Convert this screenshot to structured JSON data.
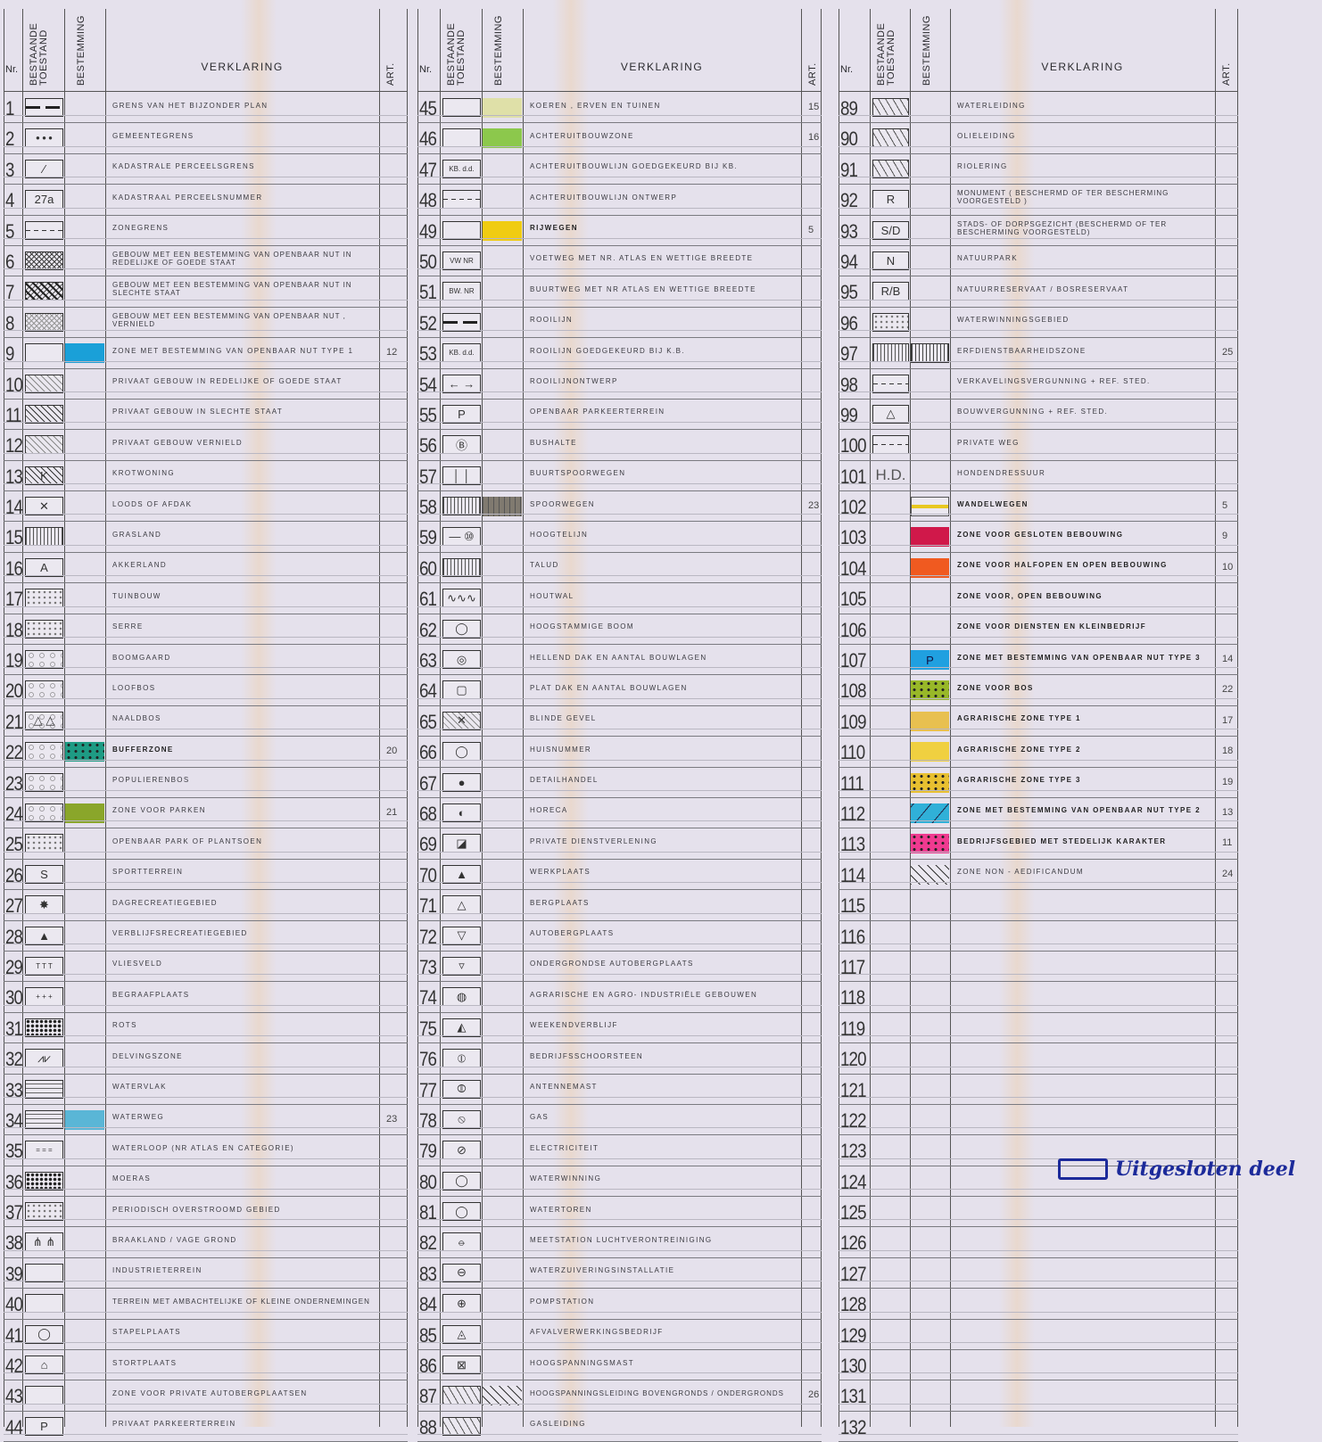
{
  "header": {
    "nr": "Nr.",
    "bestaande": "BESTAANDE TOESTAND",
    "bestemming": "BESTEMMING",
    "verklaring": "VERKLARING",
    "art": "ART."
  },
  "colors": {
    "paper": "#e5e1ec",
    "annotation": "#1c2a9a"
  },
  "annotation": {
    "text": "Uitgesloten deel",
    "icon": "outlined-rectangle-icon"
  },
  "columns": [
    {
      "rows": [
        {
          "nr": "1",
          "sym": "dash",
          "text": "GRENS VAN HET BIJZONDER PLAN"
        },
        {
          "nr": "2",
          "sym": "box",
          "glyph": "● ● ●",
          "text": "GEMEENTEGRENS"
        },
        {
          "nr": "3",
          "sym": "box",
          "glyph": "⁄",
          "text": "KADASTRALE PERCEELSGRENS"
        },
        {
          "nr": "4",
          "sym": "box",
          "glyph": "27a",
          "text": "KADASTRAAL PERCEELSNUMMER"
        },
        {
          "nr": "5",
          "sym": "dashed",
          "text": "ZONEGRENS"
        },
        {
          "nr": "6",
          "sym": "cross",
          "text": "GEBOUW MET EEN BESTEMMING VAN OPENBAAR NUT IN REDELIJKE OF GOEDE STAAT"
        },
        {
          "nr": "7",
          "sym": "cross-heavy",
          "text": "GEBOUW MET EEN BESTEMMING VAN OPENBAAR NUT IN SLECHTE STAAT"
        },
        {
          "nr": "8",
          "sym": "cross-light",
          "text": "GEBOUW MET EEN BESTEMMING VAN OPENBAAR NUT , VERNIELD"
        },
        {
          "nr": "9",
          "sym": "box",
          "dest": "#1aa0d8",
          "text": "ZONE MET BESTEMMING VAN OPENBAAR NUT TYPE 1",
          "art": "12"
        },
        {
          "nr": "10",
          "sym": "hatch-light",
          "text": "PRIVAAT GEBOUW IN REDELIJKE OF GOEDE STAAT"
        },
        {
          "nr": "11",
          "sym": "hatch",
          "text": "PRIVAAT GEBOUW IN SLECHTE STAAT"
        },
        {
          "nr": "12",
          "sym": "hatch-light",
          "text": "PRIVAAT GEBOUW VERNIELD"
        },
        {
          "nr": "13",
          "sym": "hatch",
          "glyph": "K",
          "text": "KROTWONING"
        },
        {
          "nr": "14",
          "sym": "box",
          "glyph": "✕",
          "text": "LOODS OF AFDAK"
        },
        {
          "nr": "15",
          "sym": "vlines",
          "text": "GRASLAND"
        },
        {
          "nr": "16",
          "sym": "box",
          "glyph": "A",
          "text": "AKKERLAND"
        },
        {
          "nr": "17",
          "sym": "dots",
          "text": "TUINBOUW"
        },
        {
          "nr": "18",
          "sym": "dots",
          "text": "SERRE"
        },
        {
          "nr": "19",
          "sym": "circles",
          "text": "BOOMGAARD"
        },
        {
          "nr": "20",
          "sym": "circles",
          "text": "LOOFBOS"
        },
        {
          "nr": "21",
          "sym": "circles",
          "glyph": "△ △",
          "text": "NAALDBOS"
        },
        {
          "nr": "22",
          "sym": "circles",
          "dest": "#1e9b84",
          "dest_pattern": "dots",
          "text": "BUFFERZONE",
          "bold": true,
          "art": "20"
        },
        {
          "nr": "23",
          "sym": "circles",
          "text": "POPULIERENBOS"
        },
        {
          "nr": "24",
          "sym": "circles",
          "dest": "#8aa62a",
          "text": "ZONE VOOR PARKEN",
          "art": "21"
        },
        {
          "nr": "25",
          "sym": "dots",
          "text": "OPENBAAR PARK OF PLANTSOEN"
        },
        {
          "nr": "26",
          "sym": "box",
          "glyph": "S",
          "text": "SPORTTERREIN"
        },
        {
          "nr": "27",
          "sym": "box",
          "glyph": "✸",
          "text": "DAGRECREATIEGEBIED"
        },
        {
          "nr": "28",
          "sym": "box",
          "glyph": "▲",
          "text": "VERBLIJFSRECREATIEGEBIED"
        },
        {
          "nr": "29",
          "sym": "box",
          "glyph": "T T T",
          "text": "VLIESVELD"
        },
        {
          "nr": "30",
          "sym": "box",
          "glyph": "+ + +",
          "text": "BEGRAAFPLAATS"
        },
        {
          "nr": "31",
          "sym": "rock",
          "text": "ROTS"
        },
        {
          "nr": "32",
          "sym": "box",
          "glyph": "⩘⩗",
          "text": "DELVINGSZONE"
        },
        {
          "nr": "33",
          "sym": "waves",
          "text": "WATERVLAK"
        },
        {
          "nr": "34",
          "sym": "waves",
          "dest": "#5ab6d6",
          "text": "WATERWEG",
          "art": "23"
        },
        {
          "nr": "35",
          "sym": "box",
          "glyph": "= = =",
          "text": "WATERLOOP (NR ATLAS EN CATEGORIE)"
        },
        {
          "nr": "36",
          "sym": "rock",
          "text": "MOERAS"
        },
        {
          "nr": "37",
          "sym": "dots",
          "text": "PERIODISCH OVERSTROOMD GEBIED"
        },
        {
          "nr": "38",
          "sym": "box",
          "glyph": "⋔ ⋔",
          "text": "BRAAKLAND / VAGE GROND"
        },
        {
          "nr": "39",
          "sym": "box",
          "text": "INDUSTRIETERREIN"
        },
        {
          "nr": "40",
          "sym": "box",
          "text": "TERREIN MET AMBACHTELIJKE OF KLEINE ONDERNEMINGEN"
        },
        {
          "nr": "41",
          "sym": "box",
          "glyph": "◯",
          "text": "STAPELPLAATS"
        },
        {
          "nr": "42",
          "sym": "box",
          "glyph": "⌂",
          "text": "STORTPLAATS"
        },
        {
          "nr": "43",
          "sym": "box",
          "text": "ZONE VOOR PRIVATE AUTOBERGPLAATSEN"
        },
        {
          "nr": "44",
          "sym": "box",
          "glyph": "P",
          "text": "PRIVAAT PARKEERTERREIN"
        }
      ]
    },
    {
      "rows": [
        {
          "nr": "45",
          "sym": "box",
          "dest": "#dfe0a8",
          "text": "KOEREN , ERVEN EN TUINEN",
          "art": "15"
        },
        {
          "nr": "46",
          "sym": "box",
          "dest": "#8cc84c",
          "text": "ACHTERUITBOUWZONE",
          "art": "16"
        },
        {
          "nr": "47",
          "sym": "box",
          "glyph": "KB. d.d.",
          "text": "ACHTERUITBOUWLIJN GOEDGEKEURD BIJ KB."
        },
        {
          "nr": "48",
          "sym": "dashed",
          "text": "ACHTERUITBOUWLIJN ONTWERP"
        },
        {
          "nr": "49",
          "sym": "box",
          "dest": "#f0cc12",
          "text": "RIJWEGEN",
          "bold": true,
          "art": "5"
        },
        {
          "nr": "50",
          "sym": "box",
          "glyph": "VW NR",
          "text": "VOETWEG MET NR. ATLAS EN WETTIGE BREEDTE"
        },
        {
          "nr": "51",
          "sym": "box",
          "glyph": "BW. NR",
          "text": "BUURTWEG MET NR ATLAS EN WETTIGE BREEDTE"
        },
        {
          "nr": "52",
          "sym": "dash",
          "text": "ROOILIJN"
        },
        {
          "nr": "53",
          "sym": "box",
          "glyph": "KB. d.d.",
          "text": "ROOILIJN GOEDGEKEURD BIJ K.B."
        },
        {
          "nr": "54",
          "sym": "box",
          "glyph": "←  →",
          "text": "ROOILIJNONTWERP"
        },
        {
          "nr": "55",
          "sym": "box",
          "glyph": "P",
          "text": "OPENBAAR PARKEERTERREIN"
        },
        {
          "nr": "56",
          "sym": "box",
          "glyph": "Ⓑ",
          "text": "BUSHALTE"
        },
        {
          "nr": "57",
          "sym": "box",
          "glyph": "│ │",
          "text": "BUURTSPOORWEGEN"
        },
        {
          "nr": "58",
          "sym": "vlines",
          "dest": "#807a70",
          "dest_pattern": "rail",
          "text": "SPOORWEGEN",
          "art": "23"
        },
        {
          "nr": "59",
          "sym": "box",
          "glyph": "— ⑩",
          "text": "HOOGTELIJN"
        },
        {
          "nr": "60",
          "sym": "vlines",
          "text": "TALUD"
        },
        {
          "nr": "61",
          "sym": "box",
          "glyph": "∿∿∿",
          "text": "HOUTWAL"
        },
        {
          "nr": "62",
          "sym": "box",
          "glyph": "◯",
          "text": "HOOGSTAMMIGE BOOM"
        },
        {
          "nr": "63",
          "sym": "box",
          "glyph": "◎",
          "text": "HELLEND DAK EN AANTAL BOUWLAGEN"
        },
        {
          "nr": "64",
          "sym": "box",
          "glyph": "▢",
          "text": "PLAT DAK EN AANTAL BOUWLAGEN"
        },
        {
          "nr": "65",
          "sym": "hatch-light",
          "glyph": "✕",
          "text": "BLINDE GEVEL"
        },
        {
          "nr": "66",
          "sym": "box",
          "glyph": "◯",
          "text": "HUISNUMMER"
        },
        {
          "nr": "67",
          "sym": "box",
          "glyph": "●",
          "text": "DETAILHANDEL"
        },
        {
          "nr": "68",
          "sym": "box",
          "glyph": "◐",
          "text": "HORECA"
        },
        {
          "nr": "69",
          "sym": "box",
          "glyph": "◪",
          "text": "PRIVATE DIENSTVERLENING"
        },
        {
          "nr": "70",
          "sym": "box",
          "glyph": "▲",
          "text": "WERKPLAATS"
        },
        {
          "nr": "71",
          "sym": "box",
          "glyph": "△",
          "text": "BERGPLAATS"
        },
        {
          "nr": "72",
          "sym": "box",
          "glyph": "▽",
          "text": "AUTOBERGPLAATS"
        },
        {
          "nr": "73",
          "sym": "box",
          "glyph": "▿",
          "text": "ONDERGRONDSE AUTOBERGPLAATS"
        },
        {
          "nr": "74",
          "sym": "box",
          "glyph": "◍",
          "text": "AGRARISCHE EN AGRO- INDUSTRIËLE GEBOUWEN"
        },
        {
          "nr": "75",
          "sym": "box",
          "glyph": "◭",
          "text": "WEEKENDVERBLIJF"
        },
        {
          "nr": "76",
          "sym": "box",
          "glyph": "⦶",
          "text": "BEDRIJFSSCHOORSTEEN"
        },
        {
          "nr": "77",
          "sym": "box",
          "glyph": "⦷",
          "text": "ANTENNEMAST"
        },
        {
          "nr": "78",
          "sym": "box",
          "glyph": "⦸",
          "text": "GAS"
        },
        {
          "nr": "79",
          "sym": "box",
          "glyph": "⊘",
          "text": "ELECTRICITEIT"
        },
        {
          "nr": "80",
          "sym": "box",
          "glyph": "◯",
          "text": "WATERWINNING"
        },
        {
          "nr": "81",
          "sym": "box",
          "glyph": "◯",
          "text": "WATERTOREN"
        },
        {
          "nr": "82",
          "sym": "box",
          "glyph": "⦵",
          "text": "MEETSTATION LUCHTVERONTREINIGING"
        },
        {
          "nr": "83",
          "sym": "box",
          "glyph": "⊖",
          "text": "WATERZUIVERINGSINSTALLATIE"
        },
        {
          "nr": "84",
          "sym": "box",
          "glyph": "⊕",
          "text": "POMPSTATION"
        },
        {
          "nr": "85",
          "sym": "box",
          "glyph": "◬",
          "text": "AFVALVERWERKINGSBEDRIJF"
        },
        {
          "nr": "86",
          "sym": "box",
          "glyph": "⊠",
          "text": "HOOGSPANNINGSMAST"
        },
        {
          "nr": "87",
          "sym": "chevrons",
          "dest": "#ebe8f0",
          "dest_pattern": "hatch",
          "text": "HOOGSPANNINGSLEIDING BOVENGRONDS / ONDERGRONDS",
          "art": "26"
        },
        {
          "nr": "88",
          "sym": "chevrons",
          "text": "GASLEIDING"
        }
      ]
    },
    {
      "rows": [
        {
          "nr": "89",
          "sym": "chevrons",
          "text": "WATERLEIDING"
        },
        {
          "nr": "90",
          "sym": "chevrons",
          "text": "OLIELEIDING"
        },
        {
          "nr": "91",
          "sym": "chevrons",
          "text": "RIOLERING"
        },
        {
          "nr": "92",
          "sym": "box",
          "glyph": "R",
          "text": "MONUMENT ( BESCHERMD OF TER BESCHERMING VOORGESTELD )"
        },
        {
          "nr": "93",
          "sym": "box",
          "glyph": "S/D",
          "text": "STADS- OF DORPSGEZICHT (BESCHERMD OF TER BESCHERMING VOORGESTELD)"
        },
        {
          "nr": "94",
          "sym": "box",
          "glyph": "N",
          "text": "NATUURPARK"
        },
        {
          "nr": "95",
          "sym": "box",
          "glyph": "R/B",
          "text": "NATUURRESERVAAT / BOSRESERVAAT"
        },
        {
          "nr": "96",
          "sym": "dots",
          "text": "WATERWINNINGSGEBIED"
        },
        {
          "nr": "97",
          "sym": "vlines",
          "dest": "#ebe8f0",
          "dest_pattern": "vlines",
          "text": "ERFDIENSTBAARHEIDSZONE",
          "art": "25"
        },
        {
          "nr": "98",
          "sym": "dashed",
          "text": "VERKAVELINGSVERGUNNING + REF. STED."
        },
        {
          "nr": "99",
          "sym": "box",
          "glyph": "△",
          "text": "BOUWVERGUNNING + REF. STED."
        },
        {
          "nr": "100",
          "sym": "dashed",
          "text": "PRIVATE WEG"
        },
        {
          "nr": "101",
          "sym": "plain",
          "glyph": "H.D.",
          "text": "HONDENDRESSUUR"
        },
        {
          "nr": "102",
          "sym": "none",
          "dest": "#ebe8f0",
          "dest_pattern": "line",
          "text": "WANDELWEGEN",
          "bold": true,
          "art": "5"
        },
        {
          "nr": "103",
          "sym": "none",
          "dest": "#d0184a",
          "text": "ZONE VOOR GESLOTEN BEBOUWING",
          "bold": true,
          "art": "9"
        },
        {
          "nr": "104",
          "sym": "none",
          "dest": "#f05a20",
          "text": "ZONE VOOR HALFOPEN EN OPEN BEBOUWING",
          "bold": true,
          "art": "10"
        },
        {
          "nr": "105",
          "sym": "none",
          "text": "ZONE VOOR, OPEN BEBOUWING",
          "bold": true
        },
        {
          "nr": "106",
          "sym": "none",
          "text": "ZONE VOOR DIENSTEN EN KLEINBEDRIJF",
          "bold": true
        },
        {
          "nr": "107",
          "sym": "none",
          "dest": "#20a0e0",
          "dest_glyph": "P",
          "text": "ZONE MET BESTEMMING VAN OPENBAAR NUT TYPE 3",
          "bold": true,
          "art": "14"
        },
        {
          "nr": "108",
          "sym": "none",
          "dest": "#98b828",
          "dest_pattern": "dots",
          "text": "ZONE VOOR BOS",
          "bold": true,
          "art": "22"
        },
        {
          "nr": "109",
          "sym": "none",
          "dest": "#e8c050",
          "text": "AGRARISCHE ZONE TYPE 1",
          "bold": true,
          "art": "17"
        },
        {
          "nr": "110",
          "sym": "none",
          "dest": "#f0d040",
          "text": "AGRARISCHE ZONE TYPE 2",
          "bold": true,
          "art": "18"
        },
        {
          "nr": "111",
          "sym": "none",
          "dest": "#e8c030",
          "dest_pattern": "dots",
          "text": "AGRARISCHE ZONE TYPE 3",
          "bold": true,
          "art": "19"
        },
        {
          "nr": "112",
          "sym": "none",
          "dest": "#30b0d8",
          "dest_pattern": "diag",
          "text": "ZONE MET BESTEMMING VAN OPENBAAR NUT TYPE 2",
          "bold": true,
          "art": "13"
        },
        {
          "nr": "113",
          "sym": "none",
          "dest": "#f03a90",
          "dest_pattern": "dots",
          "text": "BEDRIJFSGEBIED MET STEDELIJK KARAKTER",
          "bold": true,
          "art": "11"
        },
        {
          "nr": "114",
          "sym": "none",
          "dest": "#ebe8f0",
          "dest_pattern": "hatch",
          "text": "ZONE NON - AEDIFICANDUM",
          "art": "24"
        },
        {
          "nr": "115"
        },
        {
          "nr": "116"
        },
        {
          "nr": "117"
        },
        {
          "nr": "118"
        },
        {
          "nr": "119"
        },
        {
          "nr": "120"
        },
        {
          "nr": "121"
        },
        {
          "nr": "122"
        },
        {
          "nr": "123"
        },
        {
          "nr": "124"
        },
        {
          "nr": "125"
        },
        {
          "nr": "126"
        },
        {
          "nr": "127"
        },
        {
          "nr": "128"
        },
        {
          "nr": "129"
        },
        {
          "nr": "130"
        },
        {
          "nr": "131"
        },
        {
          "nr": "132"
        }
      ]
    }
  ]
}
